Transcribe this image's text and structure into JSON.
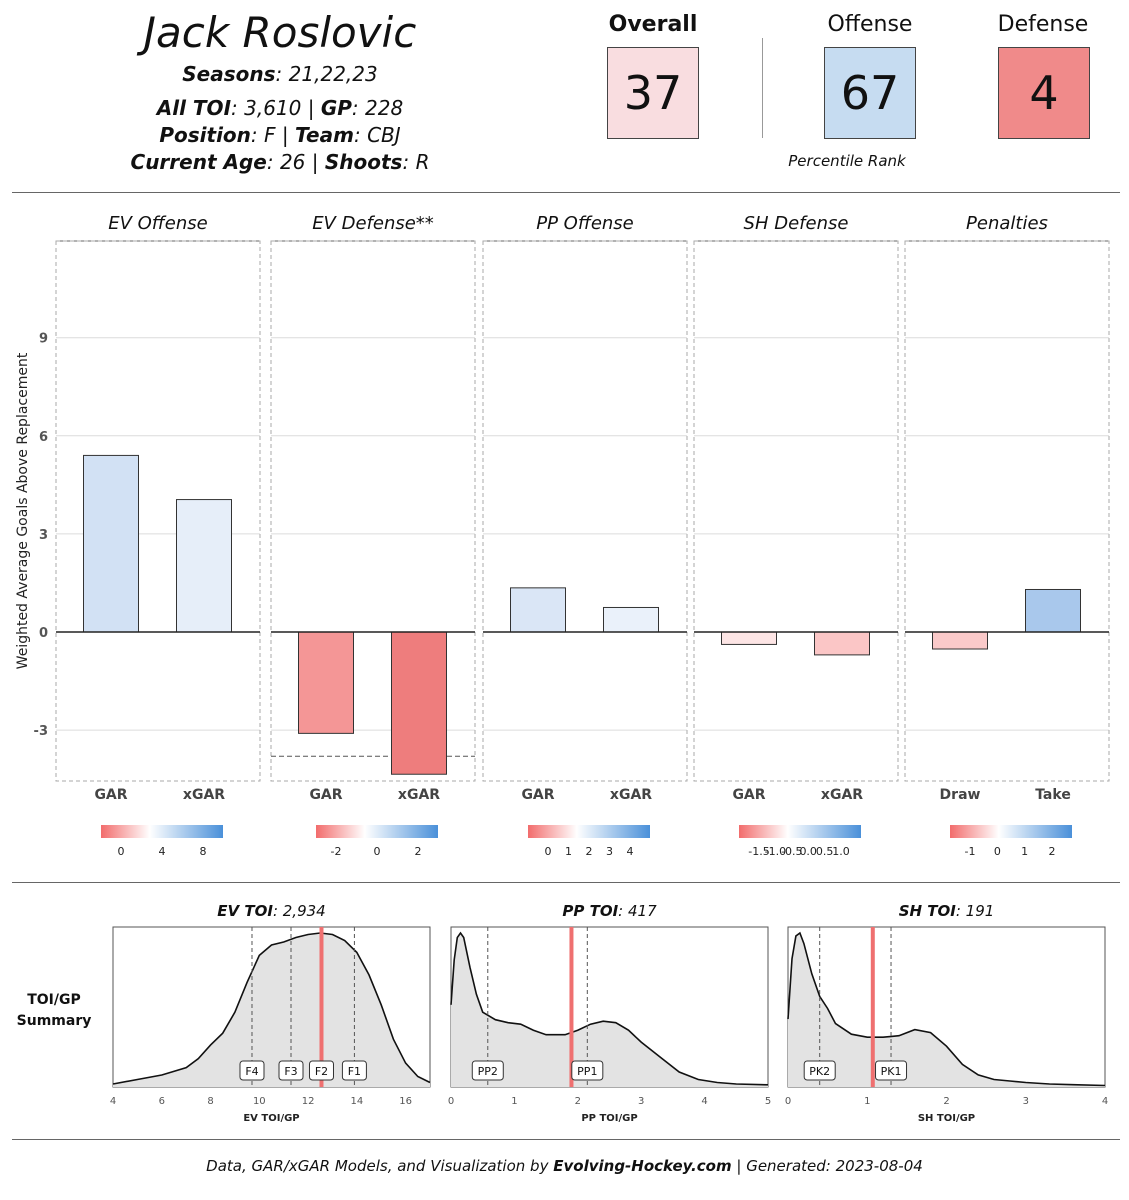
{
  "player": {
    "name": "Jack Roslovic",
    "seasons_label": "Seasons",
    "seasons": "21,22,23",
    "toi_label": "All TOI",
    "toi": "3,610",
    "gp_label": "GP",
    "gp": "228",
    "position_label": "Position",
    "position": "F",
    "team_label": "Team",
    "team": "CBJ",
    "age_label": "Current Age",
    "age": "26",
    "shoots_label": "Shoots",
    "shoots": "R"
  },
  "ranks": {
    "overall_label": "Overall",
    "overall": "37",
    "offense_label": "Offense",
    "offense": "67",
    "defense_label": "Defense",
    "defense": "4",
    "percentile_label": "Percentile Rank",
    "colors": {
      "overall": "#f9dde0",
      "offense": "#c6dcf1",
      "defense": "#f08a8a"
    }
  },
  "footer": {
    "prefix": "Data, GAR/xGAR Models, and Visualization by",
    "brand": "Evolving-Hockey.com",
    "separator": "|",
    "generated_label": "Generated:",
    "generated": "2023-08-04"
  },
  "toi_summary_label": [
    "TOI/GP",
    "Summary"
  ],
  "chart_data": [
    {
      "type": "bar",
      "ylabel": "Weighted Average Goals Above Replacement",
      "ylim": [
        -4.6,
        12
      ],
      "yticks": [
        -3,
        0,
        3,
        6,
        9
      ],
      "grid": true,
      "panels": [
        {
          "title": "EV Offense",
          "categories": [
            "GAR",
            "xGAR"
          ],
          "values": [
            5.4,
            4.05
          ],
          "colors": [
            "#d2e1f4",
            "#e6eef9"
          ],
          "legend_ticks": [
            "0",
            "4",
            "8"
          ]
        },
        {
          "title": "EV Defense**",
          "categories": [
            "GAR",
            "xGAR"
          ],
          "values": [
            -3.1,
            -4.35
          ],
          "colors": [
            "#f49696",
            "#ee7d7d"
          ],
          "reference_line": -3.8,
          "legend_ticks": [
            "-2",
            "0",
            "2"
          ]
        },
        {
          "title": "PP Offense",
          "categories": [
            "GAR",
            "xGAR"
          ],
          "values": [
            1.35,
            0.75
          ],
          "colors": [
            "#dae6f6",
            "#eaf1fa"
          ],
          "legend_ticks": [
            "0",
            "1",
            "2",
            "3",
            "4"
          ]
        },
        {
          "title": "SH Defense",
          "categories": [
            "GAR",
            "xGAR"
          ],
          "values": [
            -0.38,
            -0.7
          ],
          "colors": [
            "#fde5e5",
            "#fbc6c6"
          ],
          "legend_ticks": [
            "-1.5",
            "-1.0",
            "-0.5",
            "0.0",
            "0.5",
            "1.0"
          ]
        },
        {
          "title": "Penalties",
          "categories": [
            "Draw",
            "Take"
          ],
          "values": [
            -0.52,
            1.3
          ],
          "colors": [
            "#fac9c9",
            "#a9c8ec"
          ],
          "legend_ticks": [
            "-1",
            "0",
            "1",
            "2"
          ]
        }
      ]
    },
    {
      "type": "area",
      "title_label": "EV TOI",
      "title_value": "2,934",
      "xlabel": "EV TOI/GP",
      "xlim": [
        4,
        17
      ],
      "xticks": [
        4,
        6,
        8,
        10,
        12,
        14,
        16
      ],
      "x": [
        4,
        5,
        6,
        7,
        7.5,
        8,
        8.5,
        9,
        9.5,
        10,
        10.5,
        11,
        11.5,
        12,
        12.5,
        13,
        13.5,
        14,
        14.5,
        15,
        15.5,
        16,
        16.5,
        17
      ],
      "y": [
        0.02,
        0.05,
        0.08,
        0.13,
        0.19,
        0.28,
        0.36,
        0.5,
        0.7,
        0.88,
        0.95,
        0.97,
        1.0,
        1.02,
        1.03,
        1.02,
        0.98,
        0.9,
        0.75,
        0.55,
        0.32,
        0.16,
        0.07,
        0.03
      ],
      "player_value": 12.55,
      "markers": [
        {
          "label": "F4",
          "x": 9.7
        },
        {
          "label": "F3",
          "x": 11.3
        },
        {
          "label": "F2",
          "x": 12.55
        },
        {
          "label": "F1",
          "x": 13.9
        }
      ]
    },
    {
      "type": "area",
      "title_label": "PP TOI",
      "title_value": "417",
      "xlabel": "PP TOI/GP",
      "xlim": [
        0,
        5
      ],
      "xticks": [
        0,
        1,
        2,
        3,
        4,
        5
      ],
      "x": [
        0,
        0.05,
        0.1,
        0.15,
        0.2,
        0.3,
        0.4,
        0.5,
        0.7,
        0.9,
        1.1,
        1.3,
        1.5,
        1.8,
        2.0,
        2.2,
        2.4,
        2.6,
        2.8,
        3.0,
        3.3,
        3.6,
        3.9,
        4.2,
        4.5,
        5.0
      ],
      "y": [
        0.55,
        0.85,
        1.0,
        1.03,
        1.0,
        0.8,
        0.62,
        0.5,
        0.45,
        0.43,
        0.42,
        0.38,
        0.35,
        0.35,
        0.38,
        0.42,
        0.44,
        0.43,
        0.38,
        0.3,
        0.2,
        0.1,
        0.05,
        0.03,
        0.02,
        0.015
      ],
      "player_value": 1.9,
      "markers": [
        {
          "label": "PP2",
          "x": 0.58
        },
        {
          "label": "PP1",
          "x": 2.15
        }
      ]
    },
    {
      "type": "area",
      "title_label": "SH TOI",
      "title_value": "191",
      "xlabel": "SH TOI/GP",
      "xlim": [
        0,
        4
      ],
      "xticks": [
        0,
        1,
        2,
        3,
        4
      ],
      "x": [
        0,
        0.05,
        0.1,
        0.15,
        0.2,
        0.3,
        0.4,
        0.5,
        0.6,
        0.8,
        1.0,
        1.2,
        1.4,
        1.6,
        1.8,
        2.0,
        2.2,
        2.4,
        2.6,
        2.8,
        3.0,
        3.3,
        3.6,
        4.0
      ],
      "y": [
        0.45,
        0.85,
        1.0,
        1.02,
        0.95,
        0.75,
        0.6,
        0.52,
        0.42,
        0.35,
        0.33,
        0.33,
        0.34,
        0.38,
        0.36,
        0.27,
        0.15,
        0.08,
        0.05,
        0.04,
        0.03,
        0.02,
        0.015,
        0.01
      ],
      "player_value": 1.07,
      "markers": [
        {
          "label": "PK2",
          "x": 0.4
        },
        {
          "label": "PK1",
          "x": 1.3
        }
      ]
    }
  ]
}
